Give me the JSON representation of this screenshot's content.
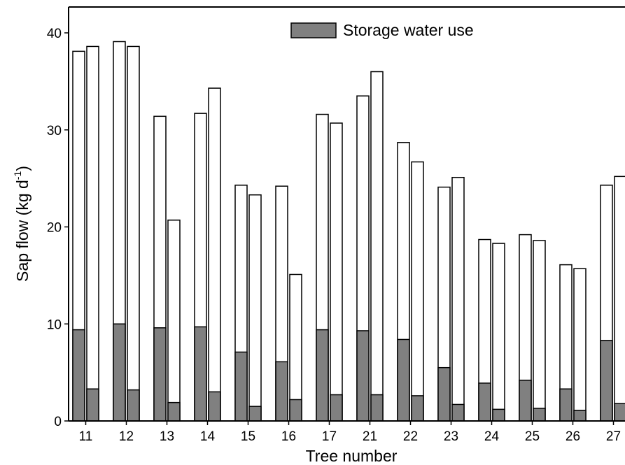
{
  "chart_data": {
    "type": "bar",
    "xlabel": "Tree number",
    "ylabel": "Sap flow (kg d",
    "ylabel_sup": "-1",
    "ylabel_end": ")",
    "ylim": [
      0,
      40
    ],
    "yticks": [
      0,
      10,
      20,
      30,
      40
    ],
    "categories": [
      "11",
      "12",
      "13",
      "14",
      "15",
      "16",
      "17",
      "21",
      "22",
      "23",
      "24",
      "25",
      "26",
      "27"
    ],
    "pairs": [
      {
        "totals": [
          38.1,
          38.6
        ],
        "storage": [
          9.4,
          3.3
        ]
      },
      {
        "totals": [
          39.1,
          38.6
        ],
        "storage": [
          10.0,
          3.2
        ]
      },
      {
        "totals": [
          31.4,
          20.7
        ],
        "storage": [
          9.6,
          1.9
        ]
      },
      {
        "totals": [
          31.7,
          34.3
        ],
        "storage": [
          9.7,
          3.0
        ]
      },
      {
        "totals": [
          24.3,
          23.3
        ],
        "storage": [
          7.1,
          1.5
        ]
      },
      {
        "totals": [
          24.2,
          15.1
        ],
        "storage": [
          6.1,
          2.2
        ]
      },
      {
        "totals": [
          31.6,
          30.7
        ],
        "storage": [
          9.4,
          2.7
        ]
      },
      {
        "totals": [
          33.5,
          36.0
        ],
        "storage": [
          9.3,
          2.7
        ]
      },
      {
        "totals": [
          28.7,
          26.7
        ],
        "storage": [
          8.4,
          2.6
        ]
      },
      {
        "totals": [
          24.1,
          25.1
        ],
        "storage": [
          5.5,
          1.7
        ]
      },
      {
        "totals": [
          18.7,
          18.3
        ],
        "storage": [
          3.9,
          1.2
        ]
      },
      {
        "totals": [
          19.2,
          18.6
        ],
        "storage": [
          4.2,
          1.3
        ]
      },
      {
        "totals": [
          16.1,
          15.7
        ],
        "storage": [
          3.3,
          1.1
        ]
      },
      {
        "totals": [
          24.3,
          25.2
        ],
        "storage": [
          8.3,
          1.8
        ]
      }
    ],
    "legend": {
      "label": "Storage water use",
      "position": "top-center"
    },
    "colors": {
      "storage": "#808080",
      "total": "#ffffff",
      "stroke": "#000000"
    },
    "grid": false
  }
}
